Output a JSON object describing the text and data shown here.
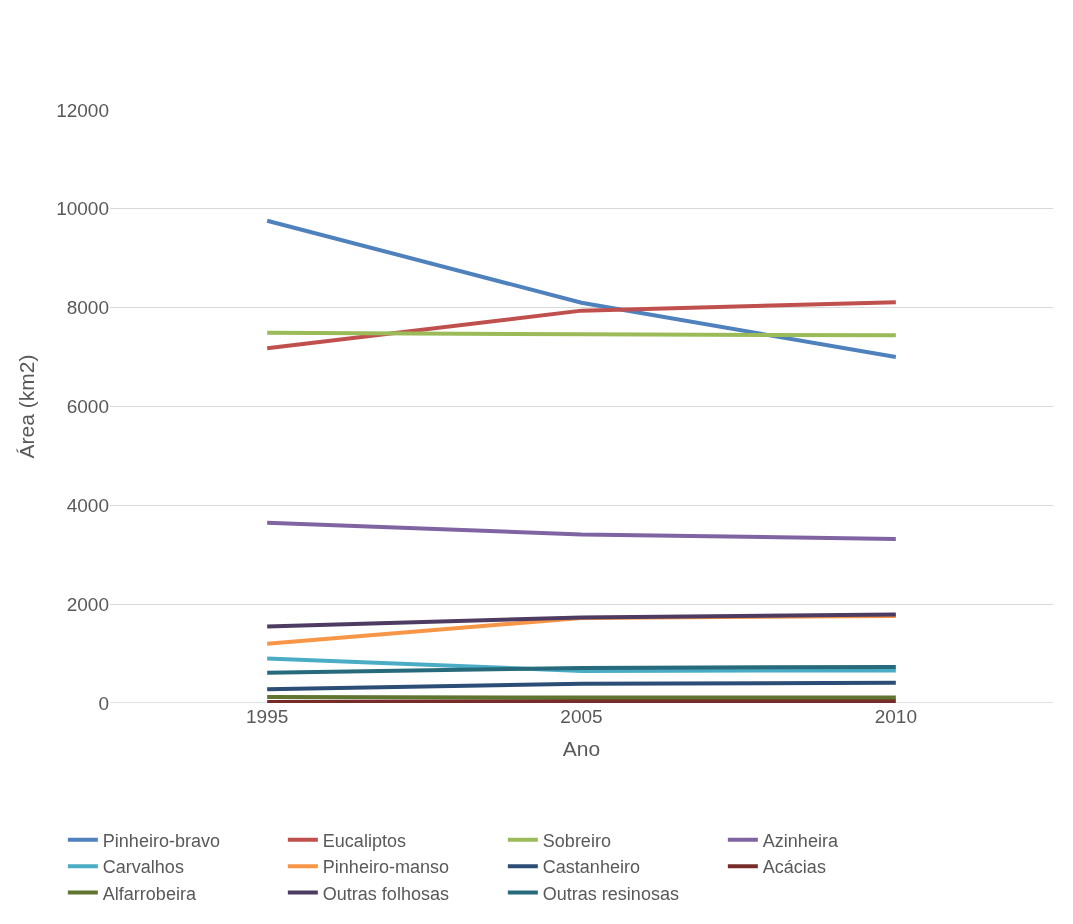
{
  "chart_data": {
    "type": "line",
    "xlabel": "Ano",
    "ylabel": "Área (km2)",
    "categories": [
      "1995",
      "2005",
      "2010"
    ],
    "ylim": [
      0,
      12000
    ],
    "yticks": [
      0,
      2000,
      4000,
      6000,
      8000,
      10000,
      12000
    ],
    "grid": "y",
    "legend": "bottom",
    "marker": "none",
    "line_style": "solid",
    "series": [
      {
        "name": "Pinheiro-bravo",
        "color": "#4f81bd",
        "values": [
          9760,
          8100,
          7000
        ]
      },
      {
        "name": "Eucaliptos",
        "color": "#c0504d",
        "values": [
          7180,
          7940,
          8110
        ]
      },
      {
        "name": "Sobreiro",
        "color": "#9bbb59",
        "values": [
          7490,
          7460,
          7440
        ]
      },
      {
        "name": "Azinheira",
        "color": "#8064a2",
        "values": [
          3650,
          3410,
          3320
        ]
      },
      {
        "name": "Carvalhos",
        "color": "#4bacc6",
        "values": [
          900,
          650,
          660
        ]
      },
      {
        "name": "Pinheiro-manso",
        "color": "#f79646",
        "values": [
          1200,
          1720,
          1760
        ]
      },
      {
        "name": "Castanheiro",
        "color": "#2c4d75",
        "values": [
          280,
          390,
          410
        ]
      },
      {
        "name": "Acácias",
        "color": "#772c2a",
        "values": [
          20,
          40,
          40
        ]
      },
      {
        "name": "Alfarrobeira",
        "color": "#5f7530",
        "values": [
          120,
          110,
          110
        ]
      },
      {
        "name": "Outras folhosas",
        "color": "#4d3b62",
        "values": [
          1550,
          1730,
          1790
        ]
      },
      {
        "name": "Outras resinosas",
        "color": "#276a7c",
        "values": [
          610,
          710,
          730
        ]
      }
    ]
  }
}
